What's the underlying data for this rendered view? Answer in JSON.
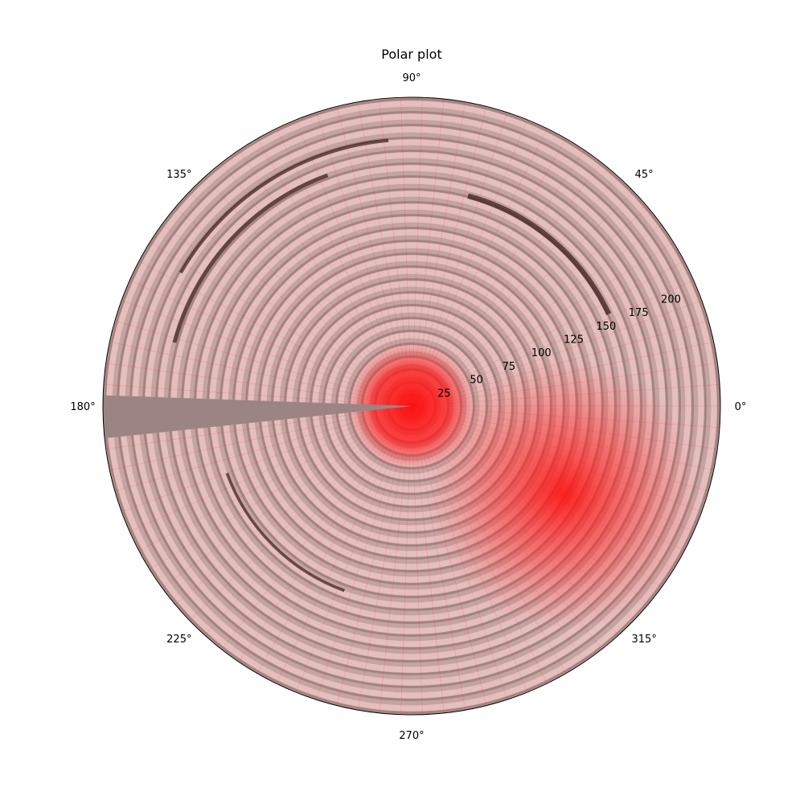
{
  "chart_data": {
    "type": "polar",
    "title": "Polar plot",
    "theta_tick_labels": [
      "0°",
      "45°",
      "90°",
      "135°",
      "180°",
      "225°",
      "270°",
      "315°"
    ],
    "theta_ticks_deg": [
      0,
      45,
      90,
      135,
      180,
      225,
      270,
      315
    ],
    "r_tick_labels": [
      "25",
      "50",
      "75",
      "100",
      "125",
      "150",
      "175",
      "200"
    ],
    "r_ticks": [
      25,
      50,
      75,
      100,
      125,
      150,
      175,
      200
    ],
    "r_label_angle_deg": 22.5,
    "rlim": [
      0,
      220
    ],
    "grid": false,
    "surface": {
      "description_colors": {
        "base": "#9c8482",
        "ring_light": "#f0c8c8",
        "ring_dark": "#3a1a1a",
        "hotspot": "#ff1a1a"
      },
      "ring_count": 24,
      "hotspots": [
        {
          "theta_deg": 0,
          "r": 0,
          "intensity": 1.0
        },
        {
          "theta_deg": 330,
          "r": 125,
          "intensity": 0.9
        }
      ],
      "gap_theta_deg": [
        178,
        186
      ]
    }
  }
}
